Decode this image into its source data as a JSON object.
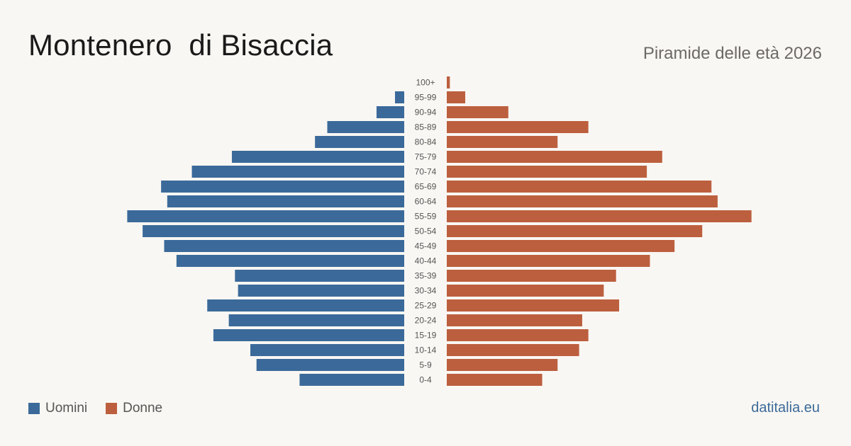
{
  "header": {
    "title": "Montenero  di Bisaccia",
    "subtitle": "Piramide delle età 2026"
  },
  "legend": {
    "men_label": "Uomini",
    "women_label": "Donne"
  },
  "footer": {
    "source": "datitalia.eu"
  },
  "colors": {
    "men": "#3b6a9a",
    "women": "#bc5f3e",
    "age_label": "#555555"
  },
  "chart_data": {
    "type": "bar",
    "orientation": "horizontal-pyramid",
    "categories": [
      "100+",
      "95-99",
      "90-94",
      "85-89",
      "80-84",
      "75-79",
      "70-74",
      "65-69",
      "60-64",
      "55-59",
      "50-54",
      "45-49",
      "40-44",
      "35-39",
      "30-34",
      "25-29",
      "20-24",
      "15-19",
      "10-14",
      "5-9",
      "0-4"
    ],
    "series": [
      {
        "name": "Uomini",
        "values": [
          0,
          3,
          9,
          25,
          29,
          56,
          69,
          79,
          77,
          90,
          85,
          78,
          74,
          55,
          54,
          64,
          57,
          62,
          50,
          48,
          34
        ]
      },
      {
        "name": "Donne",
        "values": [
          1,
          6,
          20,
          46,
          36,
          70,
          65,
          86,
          88,
          99,
          83,
          74,
          66,
          55,
          51,
          56,
          44,
          46,
          43,
          36,
          31
        ]
      }
    ],
    "grid": false,
    "legend_position": "bottom-left"
  }
}
